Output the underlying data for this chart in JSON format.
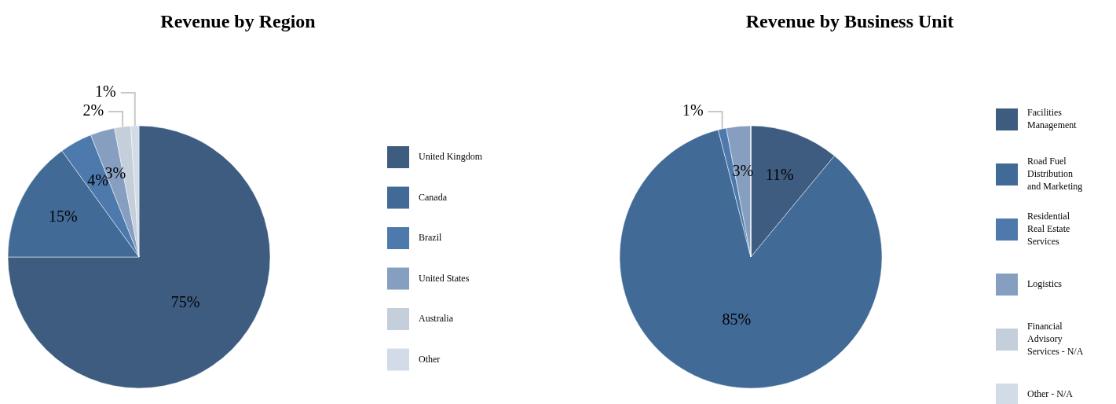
{
  "chart_data": [
    {
      "type": "pie",
      "title": "Revenue by Region",
      "categories": [
        "United Kingdom",
        "Canada",
        "Brazil",
        "United States",
        "Australia",
        "Other"
      ],
      "values": [
        75,
        15,
        4,
        3,
        2,
        1
      ],
      "colors": [
        "#3d5c80",
        "#416a97",
        "#4e79ad",
        "#869fc0",
        "#c5cedb",
        "#d1dce8"
      ],
      "value_labels": [
        "75%",
        "15%",
        "4%",
        "3%",
        "2%",
        "1%"
      ],
      "legend": "right"
    },
    {
      "type": "pie",
      "title": "Revenue by Business Unit",
      "categories": [
        "Facilities Management",
        "Road Fuel Distribution and Marketing",
        "Residential Real Estate Services",
        "Logistics",
        "Financial Advisory Services - N/A",
        "Other - N/A"
      ],
      "values": [
        11,
        85,
        1,
        3,
        0,
        0
      ],
      "colors": [
        "#3d5c80",
        "#416a97",
        "#4e79ad",
        "#869fc0",
        "#c5cedb",
        "#d1dce8"
      ],
      "value_labels": [
        "11%",
        "85%",
        "1%",
        "3%",
        null,
        null
      ],
      "legend": "right"
    }
  ]
}
